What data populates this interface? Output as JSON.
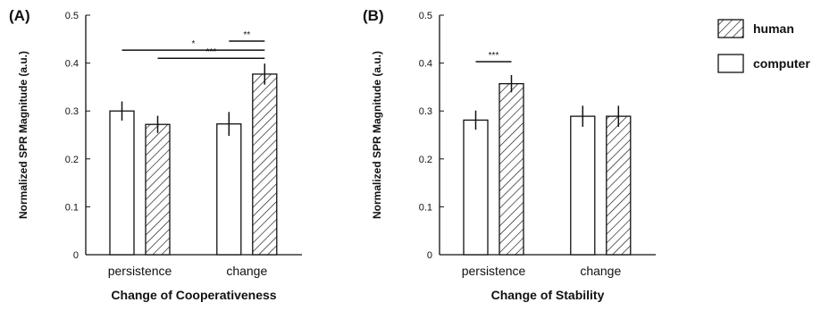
{
  "chart_data": [
    {
      "type": "bar",
      "panel": "(A)",
      "categories": [
        "persistence",
        "change"
      ],
      "series": [
        {
          "name": "computer",
          "values": [
            0.3,
            0.273
          ],
          "errors": [
            0.02,
            0.025
          ]
        },
        {
          "name": "human",
          "values": [
            0.272,
            0.377
          ],
          "errors": [
            0.018,
            0.022
          ]
        }
      ],
      "xlabel": "Change of Cooperativeness",
      "ylabel": "Normalized SPR Magnitude (a.u.)",
      "ylim": [
        0,
        0.5
      ],
      "yticks": [
        "0",
        "0.1",
        "0.2",
        "0.3",
        "0.4",
        "0.5"
      ],
      "significance": [
        {
          "label": "*",
          "from": {
            "category": 0,
            "series": 0
          },
          "to": {
            "category": 1,
            "series": 1
          },
          "level": 0.427
        },
        {
          "label": "**",
          "from": {
            "category": 1,
            "series": 0
          },
          "to": {
            "category": 1,
            "series": 1
          },
          "level": 0.446
        },
        {
          "label": "***",
          "from": {
            "category": 0,
            "series": 1
          },
          "to": {
            "category": 1,
            "series": 1
          },
          "level": 0.41
        }
      ]
    },
    {
      "type": "bar",
      "panel": "(B)",
      "categories": [
        "persistence",
        "change"
      ],
      "series": [
        {
          "name": "computer",
          "values": [
            0.281,
            0.289
          ],
          "errors": [
            0.02,
            0.022
          ]
        },
        {
          "name": "human",
          "values": [
            0.357,
            0.289
          ],
          "errors": [
            0.018,
            0.022
          ]
        }
      ],
      "xlabel": "Change of Stability",
      "ylabel": "Normalized SPR Magnitude (a.u.)",
      "ylim": [
        0,
        0.5
      ],
      "yticks": [
        "0",
        "0.1",
        "0.2",
        "0.3",
        "0.4",
        "0.5"
      ],
      "significance": [
        {
          "label": "***",
          "from": {
            "category": 0,
            "series": 0
          },
          "to": {
            "category": 0,
            "series": 1
          },
          "level": 0.403
        }
      ]
    }
  ],
  "legend": [
    {
      "label": "human",
      "pattern": "hatched"
    },
    {
      "label": "computer",
      "pattern": "open"
    }
  ]
}
